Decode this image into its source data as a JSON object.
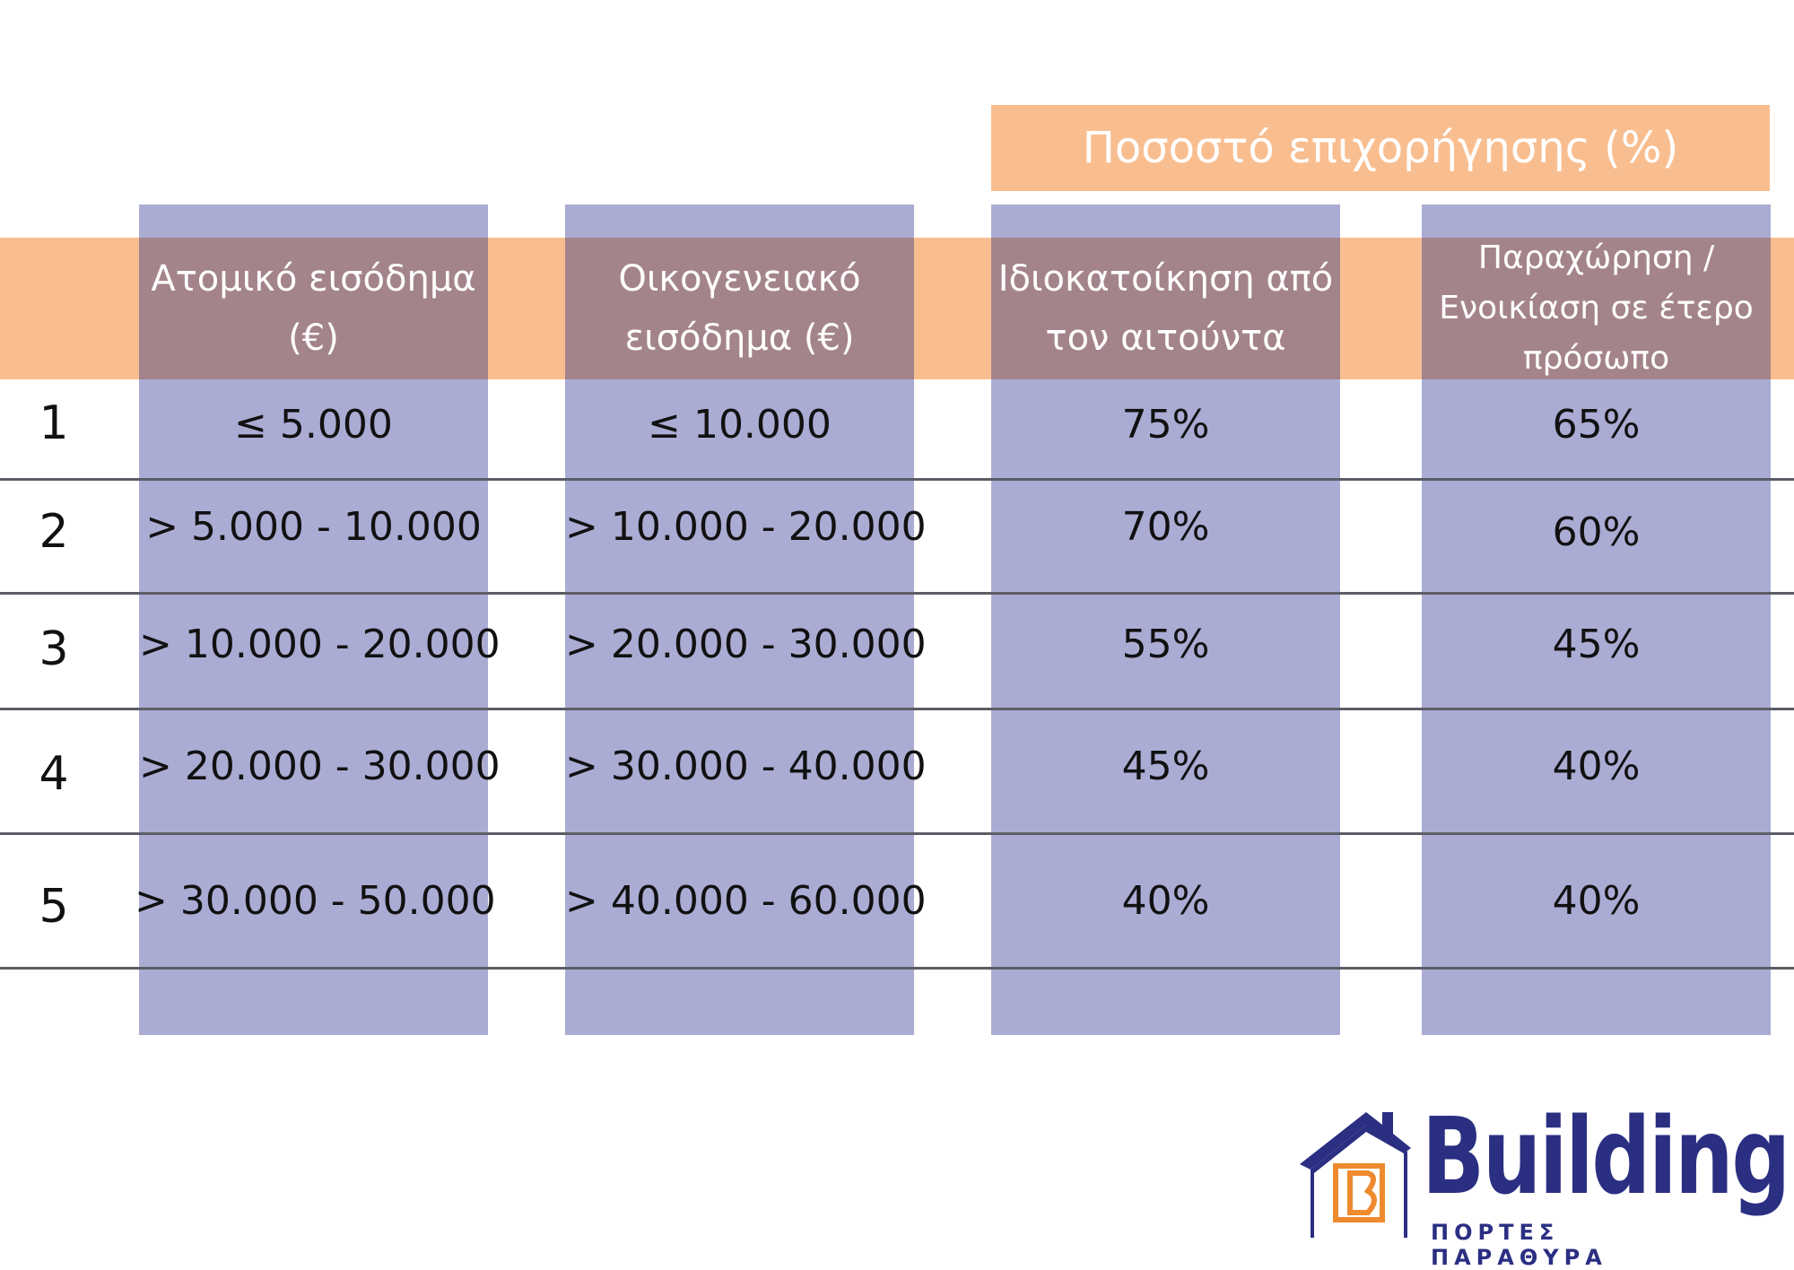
{
  "title": "Ποσοστό επιχορήγησης (%)",
  "headers": {
    "individual_income": "Ατομικό εισόδημα (€)",
    "family_income": "Οικογενειακό εισόδημα (€)",
    "owner_occupied": "Ιδιοκατοίκηση από τον αιτούντα",
    "rented": "Παραχώρηση / Ενοικίαση σε έτερο πρόσωπο"
  },
  "rows": [
    {
      "num": "1",
      "individual": "≤ 5.000",
      "family": "≤ 10.000",
      "owner": "75%",
      "rented": "65%"
    },
    {
      "num": "2",
      "individual": "> 5.000 - 10.000",
      "family": "> 10.000 - 20.000",
      "owner": "70%",
      "rented": "60%"
    },
    {
      "num": "3",
      "individual": "> 10.000 - 20.000",
      "family": "> 20.000 - 30.000",
      "owner": "55%",
      "rented": "45%"
    },
    {
      "num": "4",
      "individual": "> 20.000 - 30.000",
      "family": "> 30.000 - 40.000",
      "owner": "45%",
      "rented": "40%"
    },
    {
      "num": "5",
      "individual": "> 30.000 - 50.000",
      "family": "> 40.000 - 60.000",
      "owner": "40%",
      "rented": "40%"
    }
  ],
  "logo": {
    "name": "Building",
    "subtitle": "ΠΟΡΤΕΣ ΠΑΡΑΘΥΡΑ",
    "icon": "house-icon"
  },
  "colors": {
    "orange": "#f9be90",
    "column": "#abacd4",
    "header_cell": "#a4848b",
    "brand_blue": "#2b2f82",
    "brand_orange": "#ef8a2e"
  }
}
